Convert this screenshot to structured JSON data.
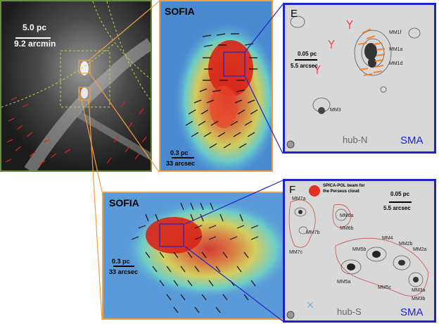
{
  "overview": {
    "scale_length": "5.0 pc",
    "scale_angle": "9.2 arcmin"
  },
  "sofia_north": {
    "instrument": "SOFIA",
    "scale_length": "0.3 pc",
    "scale_angle": "33 arcsec"
  },
  "sofia_south": {
    "instrument": "SOFIA",
    "scale_length": "0.3 pc",
    "scale_angle": "33 arcsec"
  },
  "panel_e": {
    "letter": "E",
    "instrument": "SMA",
    "hub": "hub-N",
    "scale_length": "0.05 pc",
    "scale_angle": "5.5 arcsec",
    "sources": [
      "MM1f",
      "MM1a",
      "MM1d",
      "MM3"
    ]
  },
  "panel_f": {
    "letter": "F",
    "instrument": "SMA",
    "hub": "hub-S",
    "scale_length": "0.05 pc",
    "scale_angle": "5.5 arcsec",
    "beam_label_1": "SPICA-POL beam for",
    "beam_label_2": "the Perseus cloud",
    "sources": [
      "MM7a",
      "MM6a",
      "MM7b",
      "MM6b",
      "MM7c",
      "MM5b",
      "MM4",
      "MM2b",
      "MM2a",
      "MM5a",
      "MM5c",
      "MM3a",
      "MM3b"
    ]
  },
  "colors": {
    "panel_border_blue": "#1e22cc",
    "panel_border_orange": "#f0a040",
    "panel_border_green": "#6a8f3a",
    "vectors_overview": "#e02020",
    "vectors_sma": "#ff7a1a"
  }
}
